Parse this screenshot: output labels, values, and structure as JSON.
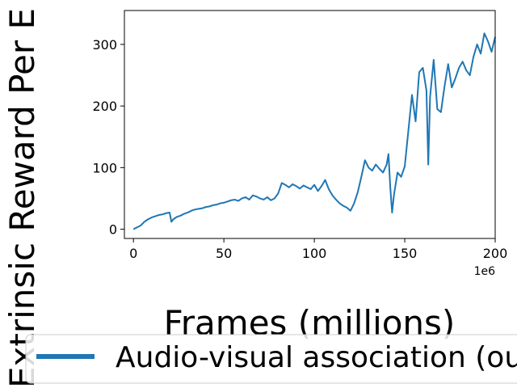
{
  "chart_data": {
    "type": "line",
    "title": "",
    "xlabel": "Frames (millions)",
    "ylabel": "Extrinsic Reward Per E",
    "x_offset_label": "1e6",
    "xlim": [
      -5,
      200
    ],
    "ylim": [
      -15,
      355
    ],
    "x_ticks": [
      0,
      50,
      100,
      150,
      200
    ],
    "y_ticks": [
      0,
      100,
      200,
      300
    ],
    "grid": false,
    "legend_position": "bottom",
    "series": [
      {
        "name": "Audio-visual association (ours)",
        "color": "#1f77b4",
        "x": [
          0,
          2,
          4,
          6,
          8,
          10,
          12,
          14,
          16,
          18,
          20,
          21,
          22,
          24,
          26,
          28,
          30,
          32,
          34,
          36,
          38,
          40,
          42,
          44,
          46,
          48,
          50,
          52,
          54,
          56,
          58,
          60,
          62,
          64,
          66,
          68,
          70,
          72,
          74,
          76,
          78,
          80,
          82,
          84,
          86,
          88,
          90,
          92,
          94,
          96,
          98,
          100,
          102,
          104,
          106,
          108,
          110,
          112,
          114,
          116,
          118,
          120,
          122,
          124,
          126,
          128,
          130,
          132,
          134,
          136,
          138,
          140,
          141,
          142,
          143,
          144,
          146,
          148,
          150,
          152,
          154,
          156,
          158,
          160,
          162,
          163,
          164,
          166,
          168,
          170,
          172,
          174,
          176,
          178,
          180,
          182,
          184,
          186,
          188,
          190,
          192,
          194,
          196,
          198,
          200
        ],
        "values": [
          0,
          3,
          6,
          12,
          16,
          19,
          21,
          23,
          24,
          26,
          27,
          12,
          16,
          20,
          22,
          25,
          27,
          30,
          32,
          33,
          34,
          36,
          37,
          39,
          40,
          42,
          43,
          45,
          47,
          48,
          46,
          50,
          52,
          48,
          55,
          53,
          50,
          48,
          52,
          47,
          50,
          58,
          75,
          72,
          68,
          73,
          70,
          66,
          71,
          68,
          65,
          72,
          62,
          70,
          80,
          65,
          55,
          48,
          42,
          38,
          35,
          30,
          42,
          60,
          85,
          112,
          100,
          95,
          105,
          98,
          92,
          105,
          122,
          68,
          27,
          55,
          92,
          85,
          102,
          160,
          218,
          175,
          255,
          262,
          225,
          105,
          215,
          275,
          195,
          190,
          232,
          268,
          230,
          245,
          262,
          272,
          258,
          250,
          280,
          300,
          285,
          318,
          305,
          288,
          312
        ]
      }
    ]
  }
}
